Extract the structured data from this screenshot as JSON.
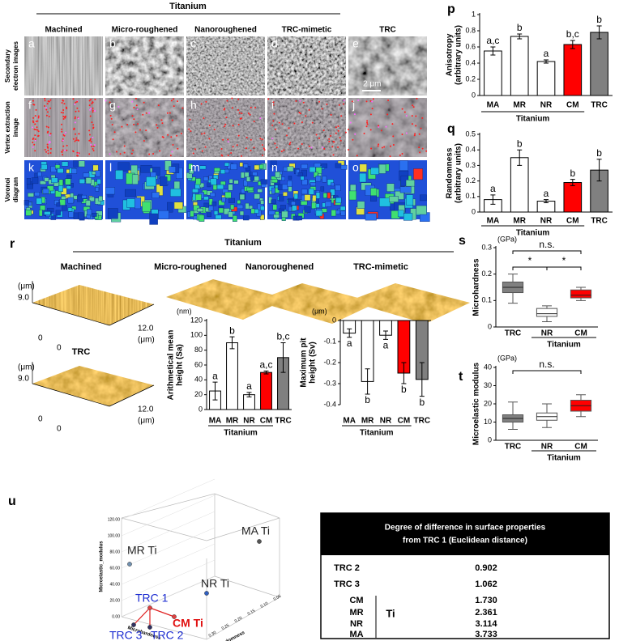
{
  "figure": {
    "top_group": "Titanium",
    "columns": [
      "Machined",
      "Micro-roughened",
      "Nanoroughened",
      "TRC-mimetic",
      "TRC"
    ],
    "row_labels": [
      [
        "Secondary",
        "electron images"
      ],
      [
        "Vertex extraction",
        "image"
      ],
      [
        "Voronoi",
        "diagram"
      ]
    ],
    "panel_letters": [
      "a",
      "b",
      "c",
      "d",
      "e",
      "f",
      "g",
      "h",
      "i",
      "j",
      "k",
      "l",
      "m",
      "n",
      "o"
    ],
    "scale_bar": "2 μm",
    "afm": {
      "label": "r",
      "group": "Titanium",
      "titles": [
        "Machined",
        "Micro-roughened",
        "Nanoroughened",
        "TRC-mimetic",
        "TRC"
      ],
      "z_unit": "(μm)",
      "z_max": "9.0",
      "origin": "0",
      "x_max": "12.0",
      "x_unit": "(μm)"
    },
    "scatter3d": {
      "label": "u",
      "z_axis": "Microelastic_modulus",
      "x_axis": "Microhardness",
      "y_axis": "Randomness",
      "z_ticks": [
        "0.00",
        "20.00",
        "40.00",
        "60.00",
        "80.00",
        "100.00",
        "120.00"
      ],
      "y_ticks": [
        "0.30",
        "0.25",
        "0.20",
        "0.15",
        "0.10",
        "0.05"
      ],
      "points": [
        "MA Ti",
        "MR Ti",
        "NR Ti",
        "TRC 1",
        "TRC 2",
        "TRC 3",
        "CM Ti"
      ]
    },
    "table": {
      "title": [
        "Degree of difference in surface properties",
        "from TRC 1 (Euclidean distance)"
      ],
      "rows": [
        [
          "TRC 2",
          "0.902"
        ],
        [
          "TRC 3",
          "1.062"
        ],
        [
          "CM",
          "1.730"
        ],
        [
          "MR",
          "2.361"
        ],
        [
          "NR",
          "3.114"
        ],
        [
          "MA",
          "3.733"
        ]
      ],
      "group": "Ti"
    }
  },
  "chart_data": [
    {
      "type": "bar",
      "label": "p",
      "y_label": [
        "Anisotropy",
        "(arbitrary units)"
      ],
      "categories": [
        "MA",
        "MR",
        "NR",
        "CM",
        "TRC"
      ],
      "values": [
        0.55,
        0.73,
        0.42,
        0.63,
        0.78
      ],
      "errors": [
        0.05,
        0.03,
        0.02,
        0.05,
        0.08
      ],
      "colors": [
        "#ffffff",
        "#ffffff",
        "#ffffff",
        "#ff0000",
        "#808080"
      ],
      "annotations": [
        "a,c",
        "b",
        "a",
        "b,c",
        "b"
      ],
      "group": "Titanium",
      "ylim": [
        0,
        1
      ],
      "yticks": [
        0,
        0.2,
        0.4,
        0.6,
        0.8,
        1
      ]
    },
    {
      "type": "bar",
      "label": "q",
      "y_label": [
        "Randomness",
        "(arbitrary units)"
      ],
      "categories": [
        "MA",
        "MR",
        "NR",
        "CM",
        "TRC"
      ],
      "values": [
        0.08,
        0.35,
        0.07,
        0.19,
        0.27
      ],
      "errors": [
        0.03,
        0.05,
        0.01,
        0.02,
        0.07
      ],
      "colors": [
        "#ffffff",
        "#ffffff",
        "#ffffff",
        "#ff0000",
        "#808080"
      ],
      "annotations": [
        "a",
        "b",
        "a",
        "b",
        "b"
      ],
      "group": "Titanium",
      "ylim": [
        0,
        0.5
      ],
      "yticks": [
        0,
        0.1,
        0.2,
        0.3,
        0.4,
        0.5
      ]
    },
    {
      "type": "bar",
      "unit": "(nm)",
      "y_label": [
        "Arithmetical mean",
        "height (Sa)"
      ],
      "categories": [
        "MA",
        "MR",
        "NR",
        "CM",
        "TRC"
      ],
      "values": [
        25,
        90,
        20,
        50,
        70
      ],
      "errors": [
        12,
        8,
        3,
        2,
        20
      ],
      "colors": [
        "#ffffff",
        "#ffffff",
        "#ffffff",
        "#ff0000",
        "#808080"
      ],
      "annotations": [
        "a",
        "b",
        "a",
        "a,c",
        "b,c"
      ],
      "group": "Titanium",
      "ylim": [
        0,
        120
      ],
      "yticks": [
        0,
        20,
        40,
        60,
        80,
        100,
        120
      ]
    },
    {
      "type": "bar",
      "unit": "(μm)",
      "y_label": [
        "Maximum pit",
        "height (Sv)"
      ],
      "categories": [
        "MA",
        "MR",
        "NR",
        "CM",
        "TRC"
      ],
      "values": [
        -0.06,
        -0.29,
        -0.07,
        -0.25,
        -0.28
      ],
      "errors": [
        0.02,
        0.06,
        0.02,
        0.05,
        0.08
      ],
      "colors": [
        "#ffffff",
        "#ffffff",
        "#ffffff",
        "#ff0000",
        "#808080"
      ],
      "annotations": [
        "a",
        "b",
        "a",
        "b",
        "b"
      ],
      "group": "Titanium",
      "ylim": [
        -0.4,
        0
      ],
      "yticks": [
        -0.4,
        -0.3,
        -0.2,
        -0.1,
        0
      ]
    },
    {
      "type": "box",
      "label": "s",
      "unit": "(GPa)",
      "y_label": [
        "Microhardness"
      ],
      "categories": [
        "TRC",
        "NR",
        "CM"
      ],
      "boxes": [
        {
          "min": 0.09,
          "q1": 0.13,
          "median": 0.15,
          "q3": 0.17,
          "max": 0.2
        },
        {
          "min": 0.02,
          "q1": 0.04,
          "median": 0.05,
          "q3": 0.07,
          "max": 0.08
        },
        {
          "min": 0.1,
          "q1": 0.11,
          "median": 0.12,
          "q3": 0.14,
          "max": 0.15
        }
      ],
      "colors": [
        "#808080",
        "#ffffff",
        "#ff0000"
      ],
      "annotations": [
        "n.s.",
        "*",
        "*"
      ],
      "group": "Titanium",
      "ylim": [
        0,
        0.3
      ],
      "yticks": [
        0,
        0.1,
        0.2,
        0.3
      ]
    },
    {
      "type": "box",
      "label": "t",
      "unit": "(GPa)",
      "y_label": [
        "Microelastic modulus"
      ],
      "categories": [
        "TRC",
        "NR",
        "CM"
      ],
      "boxes": [
        {
          "min": 6,
          "q1": 10,
          "median": 12,
          "q3": 14,
          "max": 21
        },
        {
          "min": 7,
          "q1": 11,
          "median": 13,
          "q3": 15,
          "max": 20
        },
        {
          "min": 13,
          "q1": 16,
          "median": 19,
          "q3": 22,
          "max": 25
        }
      ],
      "colors": [
        "#808080",
        "#ffffff",
        "#ff0000"
      ],
      "annotations": [
        "n.s."
      ],
      "group": "Titanium",
      "ylim": [
        0,
        40
      ],
      "yticks": [
        0,
        10,
        20,
        30,
        40
      ]
    }
  ]
}
